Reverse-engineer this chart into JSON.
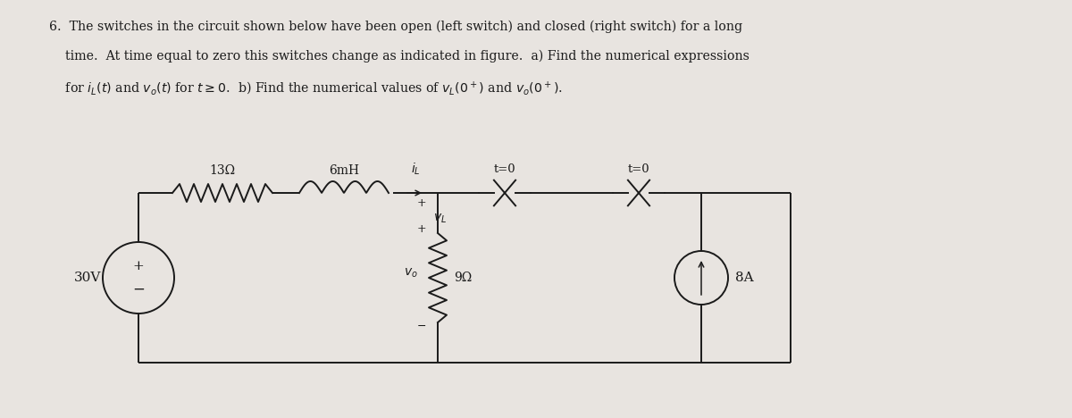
{
  "bg_color": "#e8e4e0",
  "text_color": "#1a1a1a",
  "circuit": {
    "vx_label": "30V",
    "r1_label": "13Ω",
    "l1_label": "6mH",
    "il_label": "i_L",
    "r2_label": "9Ω",
    "vo_label": "v_o",
    "vl_label": "v_L",
    "is_label": "8A",
    "sw1_label": "t=0",
    "sw2_label": "t=0"
  },
  "title_lines": [
    "6.  The switches in the circuit shown below have been open (left switch) and closed (right switch) for a long",
    "    time.  At time equal to zero this switches change as indicated in figure.  a) Find the numerical expressions",
    "    for $i_L(t)$ and $v_o(t)$ for $t \\geq 0$.  b) Find the numerical values of $v_L(0^+)$ and $v_o(0^+)$."
  ]
}
